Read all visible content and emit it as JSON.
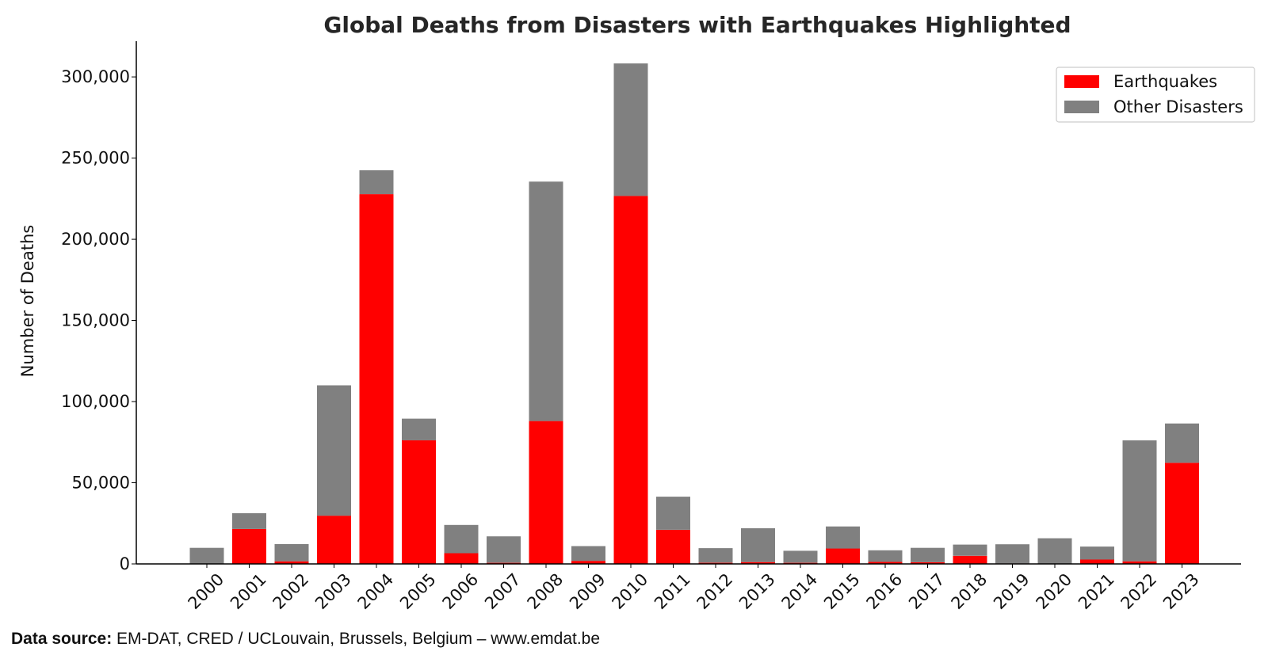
{
  "chart_data": {
    "type": "bar",
    "stacked": true,
    "title": "Global Deaths from Disasters with Earthquakes Highlighted",
    "xlabel": "",
    "ylabel": "Number of Deaths",
    "ylim": [
      0,
      322000
    ],
    "yticks": [
      0,
      50000,
      100000,
      150000,
      200000,
      250000,
      300000
    ],
    "ytick_labels": [
      "0",
      "50,000",
      "100,000",
      "150,000",
      "200,000",
      "250,000",
      "300,000"
    ],
    "grid": false,
    "legend_position": "top-right",
    "categories": [
      "2000",
      "2001",
      "2002",
      "2003",
      "2004",
      "2005",
      "2006",
      "2007",
      "2008",
      "2009",
      "2010",
      "2011",
      "2012",
      "2013",
      "2014",
      "2015",
      "2016",
      "2017",
      "2018",
      "2019",
      "2020",
      "2021",
      "2022",
      "2023"
    ],
    "series": [
      {
        "name": "Earthquakes",
        "color": "#ff0000",
        "values": [
          200,
          21500,
          1600,
          29700,
          227800,
          76200,
          6600,
          700,
          88000,
          1900,
          226700,
          21000,
          700,
          1100,
          700,
          9500,
          1300,
          1000,
          5000,
          300,
          200,
          2700,
          1600,
          62300
        ]
      },
      {
        "name": "Other Disasters",
        "color": "#808080",
        "values": [
          9700,
          9700,
          10600,
          80300,
          14700,
          13300,
          17400,
          16300,
          147500,
          9100,
          81600,
          20400,
          9000,
          20900,
          7400,
          13600,
          7100,
          8900,
          6900,
          11800,
          15600,
          8000,
          74500,
          24200
        ]
      }
    ]
  },
  "source": {
    "label": "Data source:",
    "text": " EM-DAT, CRED / UCLouvain, Brussels, Belgium – www.emdat.be"
  }
}
